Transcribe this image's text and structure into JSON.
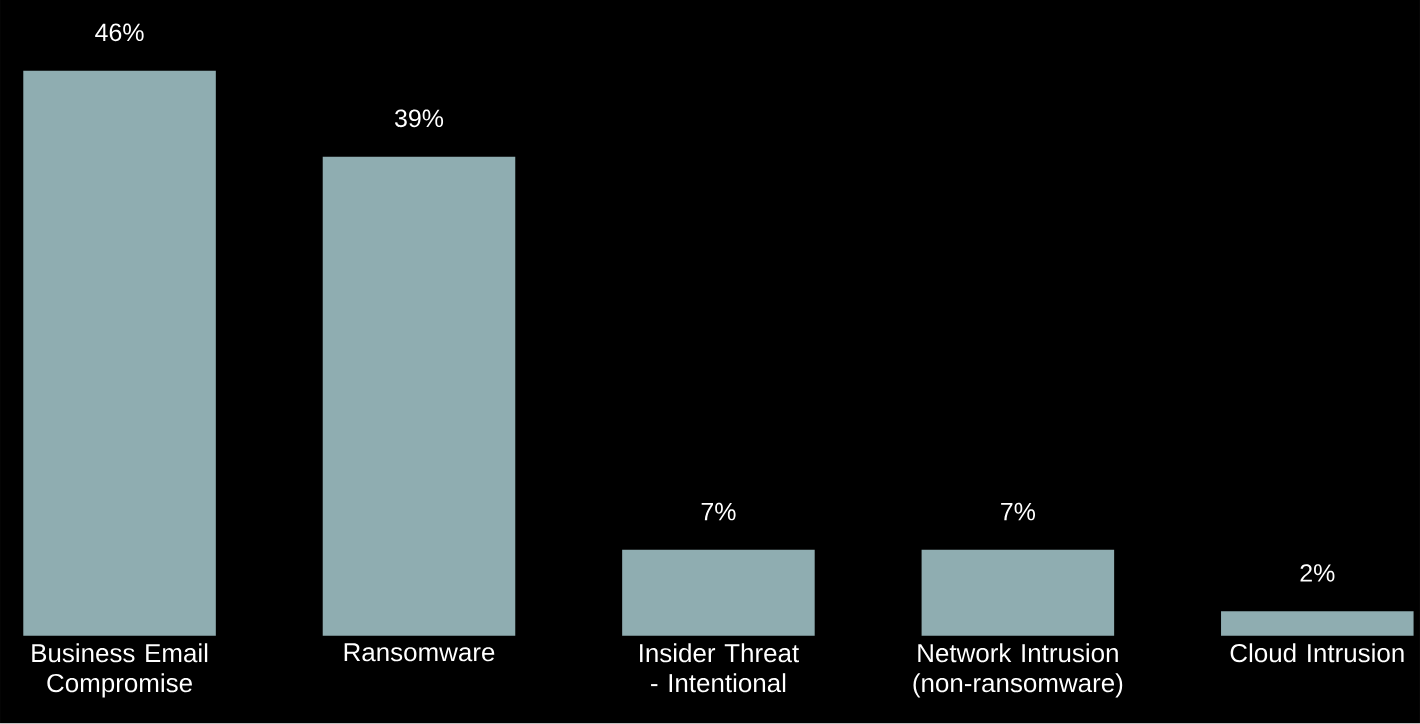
{
  "chart_data": {
    "type": "bar",
    "categories": [
      "Business Email Compromise",
      "Ransomware",
      "Insider Threat - Intentional",
      "Network Intrusion (non-ransomware)",
      "Cloud Intrusion"
    ],
    "values": [
      46,
      39,
      7,
      7,
      2
    ],
    "value_labels": [
      "46%",
      "39%",
      "7%",
      "7%",
      "2%"
    ],
    "color": "#8fadb1"
  }
}
